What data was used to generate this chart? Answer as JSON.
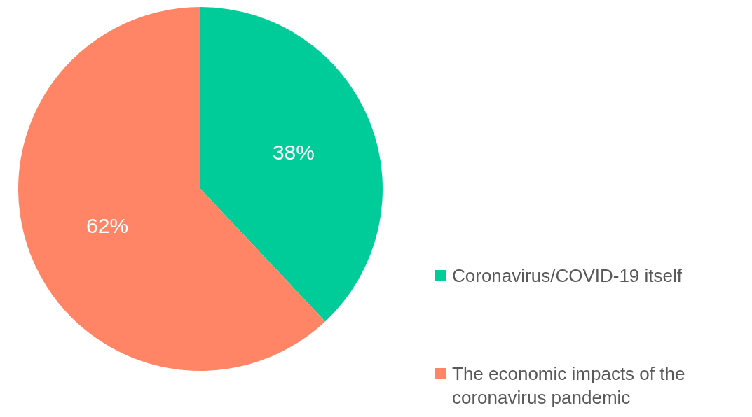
{
  "chart_data": {
    "type": "pie",
    "categories": [
      "Coronavirus/COVID-19 itself",
      "The economic impacts of the coronavirus pandemic"
    ],
    "values": [
      38,
      62
    ],
    "value_labels": [
      "38%",
      "62%"
    ],
    "colors": [
      "#00cc99",
      "#ff8566"
    ],
    "legend": "right"
  }
}
